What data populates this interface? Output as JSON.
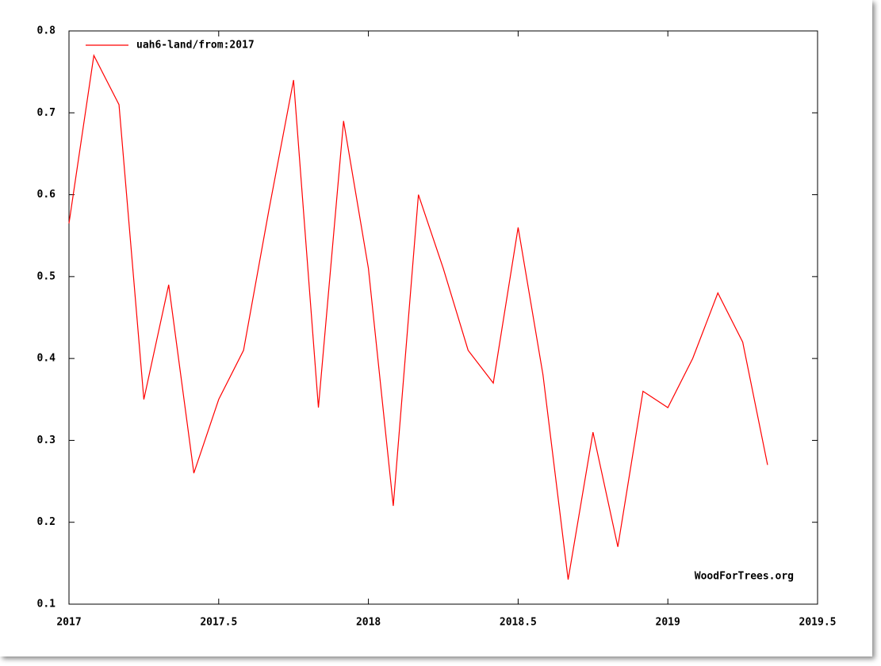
{
  "chart_data": {
    "type": "line",
    "legend": "uah6-land/from:2017",
    "annotation": "WoodForTrees.org",
    "x": [
      2017,
      2017.083,
      2017.167,
      2017.25,
      2017.333,
      2017.417,
      2017.5,
      2017.583,
      2017.667,
      2017.75,
      2017.833,
      2017.917,
      2018,
      2018.083,
      2018.167,
      2018.25,
      2018.333,
      2018.417,
      2018.5,
      2018.583,
      2018.667,
      2018.75,
      2018.833,
      2018.917,
      2019,
      2019.083,
      2019.167,
      2019.25,
      2019.333
    ],
    "series": [
      {
        "name": "uah6-land/from:2017",
        "color": "#ff0000",
        "values": [
          0.565,
          0.77,
          0.71,
          0.35,
          0.49,
          0.26,
          0.35,
          0.41,
          0.58,
          0.74,
          0.34,
          0.69,
          0.51,
          0.22,
          0.6,
          0.51,
          0.41,
          0.37,
          0.56,
          0.38,
          0.13,
          0.31,
          0.17,
          0.36,
          0.34,
          0.4,
          0.48,
          0.42,
          0.27
        ]
      }
    ],
    "xlim": [
      2017,
      2019.5
    ],
    "xticks": [
      2017,
      2017.5,
      2018,
      2018.5,
      2019,
      2019.5
    ],
    "ylim": [
      0.1,
      0.8
    ],
    "yticks": [
      0.1,
      0.2,
      0.3,
      0.4,
      0.5,
      0.6,
      0.7,
      0.8
    ]
  }
}
